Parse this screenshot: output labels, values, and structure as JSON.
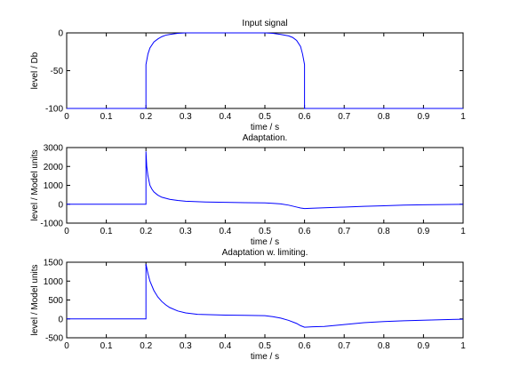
{
  "chart_data": [
    {
      "type": "line",
      "title": "Input signal",
      "xlabel": "time / s",
      "ylabel": "level / Db",
      "xlim": [
        0,
        1
      ],
      "ylim": [
        -100,
        0
      ],
      "xticks": [
        "0",
        "0.1",
        "0.2",
        "0.3",
        "0.4",
        "0.5",
        "0.6",
        "0.7",
        "0.8",
        "0.9",
        "1"
      ],
      "yticks": [
        "-100",
        "-50",
        "0"
      ],
      "series": [
        {
          "color": "#0000ff",
          "x": [
            0,
            0.2,
            0.2,
            0.205,
            0.21,
            0.22,
            0.23,
            0.24,
            0.25,
            0.26,
            0.28,
            0.3,
            0.5,
            0.52,
            0.54,
            0.56,
            0.57,
            0.58,
            0.59,
            0.595,
            0.6,
            0.6,
            1
          ],
          "y": [
            -100,
            -100,
            -42,
            -28,
            -20,
            -12,
            -8,
            -5,
            -3,
            -2,
            -0.6,
            0,
            0,
            -0.6,
            -2,
            -4,
            -6,
            -10,
            -18,
            -28,
            -42,
            -100,
            -100
          ]
        }
      ]
    },
    {
      "type": "line",
      "title": "Adaptation.",
      "xlabel": "time / s",
      "ylabel": "level / Model units",
      "xlim": [
        0,
        1
      ],
      "ylim": [
        -1000,
        3000
      ],
      "xticks": [
        "0",
        "0.1",
        "0.2",
        "0.3",
        "0.4",
        "0.5",
        "0.6",
        "0.7",
        "0.8",
        "0.9",
        "1"
      ],
      "yticks": [
        "-1000",
        "0",
        "1000",
        "2000",
        "3000"
      ],
      "series": [
        {
          "color": "#0000ff",
          "x": [
            0,
            0.2,
            0.2,
            0.202,
            0.205,
            0.21,
            0.215,
            0.22,
            0.23,
            0.24,
            0.26,
            0.28,
            0.3,
            0.35,
            0.4,
            0.45,
            0.5,
            0.52,
            0.54,
            0.56,
            0.58,
            0.59,
            0.6,
            0.62,
            0.65,
            0.7,
            0.75,
            0.8,
            0.85,
            0.9,
            0.95,
            1
          ],
          "y": [
            0,
            0,
            2800,
            2000,
            1500,
            1000,
            800,
            650,
            480,
            370,
            260,
            200,
            160,
            120,
            100,
            85,
            70,
            50,
            20,
            -50,
            -150,
            -200,
            -230,
            -210,
            -190,
            -150,
            -110,
            -80,
            -50,
            -30,
            -15,
            -5
          ]
        }
      ]
    },
    {
      "type": "line",
      "title": "Adaptation w. limiting.",
      "xlabel": "time / s",
      "ylabel": "level / Model units",
      "xlim": [
        0,
        1
      ],
      "ylim": [
        -500,
        1500
      ],
      "xticks": [
        "0",
        "0.1",
        "0.2",
        "0.3",
        "0.4",
        "0.5",
        "0.6",
        "0.7",
        "0.8",
        "0.9",
        "1"
      ],
      "yticks": [
        "-500",
        "0",
        "500",
        "1000",
        "1500"
      ],
      "series": [
        {
          "color": "#0000ff",
          "x": [
            0,
            0.2,
            0.2,
            0.205,
            0.21,
            0.22,
            0.23,
            0.24,
            0.25,
            0.26,
            0.28,
            0.3,
            0.33,
            0.4,
            0.45,
            0.5,
            0.52,
            0.54,
            0.56,
            0.58,
            0.59,
            0.6,
            0.62,
            0.65,
            0.7,
            0.75,
            0.8,
            0.85,
            0.9,
            0.95,
            1
          ],
          "y": [
            0,
            0,
            1450,
            1200,
            1000,
            750,
            580,
            460,
            370,
            300,
            210,
            160,
            120,
            100,
            95,
            85,
            60,
            20,
            -40,
            -120,
            -180,
            -220,
            -210,
            -200,
            -150,
            -100,
            -70,
            -50,
            -35,
            -20,
            -10
          ]
        }
      ]
    }
  ]
}
